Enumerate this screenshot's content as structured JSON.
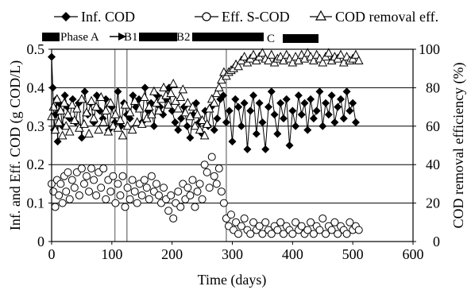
{
  "chart_data": {
    "type": "scatter",
    "xlabel": "Time (days)",
    "ylabel_left": "Inf. and Eff. COD (g COD/L)",
    "ylabel_right": "COD removal efficiency (%)",
    "xlim": [
      0,
      600
    ],
    "ylim_left": [
      0,
      0.5
    ],
    "ylim_right": [
      0,
      100
    ],
    "x_ticks": [
      0,
      100,
      200,
      300,
      400,
      500,
      600
    ],
    "y_ticks_left": [
      0,
      0.1,
      0.2,
      0.3,
      0.4,
      0.5
    ],
    "y_ticks_right": [
      0,
      20,
      40,
      60,
      80,
      100
    ],
    "grid": "horizontal",
    "legend_placement": "top",
    "legend": [
      "Inf. COD",
      "Eff. S-COD",
      "COD removal eff."
    ],
    "phase_labels": [
      "Phase A",
      "B1",
      "B2",
      "C"
    ],
    "phase_boundaries_days": [
      105,
      125,
      290
    ],
    "series": [
      {
        "name": "Inf. COD",
        "marker": "filled-diamond",
        "axis": "left",
        "line": true,
        "x": [
          0,
          2,
          4,
          6,
          8,
          10,
          12,
          15,
          18,
          22,
          26,
          30,
          35,
          40,
          45,
          50,
          55,
          60,
          65,
          70,
          75,
          80,
          85,
          90,
          95,
          100,
          105,
          110,
          115,
          120,
          125,
          130,
          135,
          140,
          145,
          150,
          155,
          160,
          165,
          170,
          175,
          180,
          185,
          190,
          195,
          200,
          205,
          210,
          215,
          220,
          225,
          230,
          235,
          240,
          245,
          250,
          255,
          260,
          265,
          270,
          275,
          280,
          285,
          290,
          295,
          300,
          305,
          310,
          315,
          320,
          325,
          330,
          335,
          340,
          345,
          350,
          355,
          360,
          365,
          370,
          375,
          380,
          385,
          390,
          395,
          400,
          405,
          410,
          415,
          420,
          425,
          430,
          435,
          440,
          445,
          450,
          455,
          460,
          465,
          470,
          475,
          480,
          485,
          490,
          495,
          500,
          505
        ],
        "y": [
          0.48,
          0.4,
          0.29,
          0.33,
          0.37,
          0.26,
          0.36,
          0.34,
          0.3,
          0.38,
          0.35,
          0.32,
          0.37,
          0.31,
          0.36,
          0.27,
          0.39,
          0.33,
          0.36,
          0.31,
          0.38,
          0.34,
          0.32,
          0.37,
          0.29,
          0.35,
          0.31,
          0.39,
          0.3,
          0.36,
          0.33,
          0.32,
          0.38,
          0.35,
          0.37,
          0.31,
          0.4,
          0.34,
          0.36,
          0.3,
          0.38,
          0.35,
          0.33,
          0.37,
          0.4,
          0.34,
          0.31,
          0.29,
          0.32,
          0.35,
          0.3,
          0.27,
          0.33,
          0.36,
          0.31,
          0.28,
          0.34,
          0.3,
          0.35,
          0.29,
          0.32,
          0.37,
          0.38,
          0.31,
          0.34,
          0.26,
          0.37,
          0.35,
          0.3,
          0.36,
          0.24,
          0.34,
          0.38,
          0.28,
          0.36,
          0.31,
          0.24,
          0.35,
          0.39,
          0.33,
          0.28,
          0.36,
          0.32,
          0.37,
          0.25,
          0.34,
          0.3,
          0.38,
          0.33,
          0.36,
          0.29,
          0.37,
          0.32,
          0.34,
          0.39,
          0.3,
          0.36,
          0.33,
          0.38,
          0.31,
          0.35,
          0.37,
          0.32,
          0.39,
          0.34,
          0.36,
          0.31
        ]
      },
      {
        "name": "Eff. S-COD",
        "marker": "open-circle",
        "axis": "left",
        "line": false,
        "x": [
          0,
          3,
          6,
          9,
          12,
          15,
          18,
          21,
          24,
          27,
          30,
          34,
          38,
          42,
          46,
          50,
          54,
          58,
          62,
          66,
          70,
          74,
          78,
          82,
          86,
          90,
          94,
          98,
          102,
          106,
          110,
          114,
          118,
          122,
          126,
          130,
          134,
          138,
          142,
          146,
          150,
          154,
          158,
          162,
          166,
          170,
          174,
          178,
          182,
          186,
          190,
          194,
          198,
          202,
          206,
          210,
          214,
          218,
          222,
          226,
          230,
          234,
          238,
          242,
          246,
          250,
          254,
          258,
          262,
          266,
          270,
          274,
          278,
          282,
          286,
          290,
          294,
          298,
          302,
          306,
          310,
          315,
          320,
          325,
          330,
          335,
          340,
          345,
          350,
          355,
          360,
          365,
          370,
          375,
          380,
          385,
          390,
          395,
          400,
          405,
          410,
          415,
          420,
          425,
          430,
          435,
          440,
          445,
          450,
          455,
          460,
          465,
          470,
          475,
          480,
          485,
          490,
          495,
          500,
          505,
          510
        ],
        "y": [
          0.15,
          0.13,
          0.09,
          0.16,
          0.12,
          0.15,
          0.1,
          0.17,
          0.13,
          0.18,
          0.11,
          0.16,
          0.14,
          0.18,
          0.12,
          0.19,
          0.15,
          0.17,
          0.13,
          0.19,
          0.16,
          0.12,
          0.18,
          0.14,
          0.19,
          0.11,
          0.16,
          0.13,
          0.17,
          0.1,
          0.15,
          0.12,
          0.17,
          0.09,
          0.14,
          0.11,
          0.16,
          0.13,
          0.1,
          0.15,
          0.12,
          0.16,
          0.14,
          0.11,
          0.17,
          0.13,
          0.15,
          0.12,
          0.1,
          0.14,
          0.11,
          0.08,
          0.12,
          0.06,
          0.1,
          0.13,
          0.09,
          0.15,
          0.11,
          0.14,
          0.12,
          0.16,
          0.09,
          0.13,
          0.15,
          0.11,
          0.2,
          0.18,
          0.14,
          0.22,
          0.17,
          0.15,
          0.19,
          0.13,
          0.1,
          0.06,
          0.04,
          0.07,
          0.03,
          0.05,
          0.02,
          0.04,
          0.06,
          0.03,
          0.02,
          0.05,
          0.03,
          0.04,
          0.02,
          0.05,
          0.03,
          0.02,
          0.04,
          0.03,
          0.05,
          0.02,
          0.04,
          0.03,
          0.02,
          0.05,
          0.03,
          0.04,
          0.02,
          0.03,
          0.05,
          0.02,
          0.04,
          0.03,
          0.06,
          0.02,
          0.04,
          0.03,
          0.05,
          0.02,
          0.04,
          0.03,
          0.02,
          0.05,
          0.03,
          0.04,
          0.03
        ]
      },
      {
        "name": "COD removal eff.",
        "marker": "open-triangle",
        "axis": "right",
        "line": false,
        "x": [
          0,
          3,
          6,
          9,
          12,
          15,
          18,
          21,
          24,
          27,
          30,
          34,
          38,
          42,
          46,
          50,
          54,
          58,
          62,
          66,
          70,
          74,
          78,
          82,
          86,
          90,
          94,
          98,
          102,
          106,
          110,
          114,
          118,
          122,
          126,
          130,
          134,
          138,
          142,
          146,
          150,
          154,
          158,
          162,
          166,
          170,
          174,
          178,
          182,
          186,
          190,
          194,
          198,
          202,
          206,
          210,
          214,
          218,
          222,
          226,
          230,
          234,
          238,
          242,
          246,
          250,
          254,
          258,
          262,
          266,
          270,
          274,
          278,
          282,
          286,
          290,
          294,
          298,
          302,
          306,
          310,
          315,
          320,
          325,
          330,
          335,
          340,
          345,
          350,
          355,
          360,
          365,
          370,
          375,
          380,
          385,
          390,
          395,
          400,
          405,
          410,
          415,
          420,
          425,
          430,
          435,
          440,
          445,
          450,
          455,
          460,
          465,
          470,
          475,
          480,
          485,
          490,
          495,
          500,
          505,
          510
        ],
        "y": [
          65,
          70,
          58,
          74,
          62,
          68,
          55,
          72,
          60,
          66,
          57,
          71,
          63,
          69,
          59,
          74,
          61,
          67,
          56,
          73,
          64,
          70,
          58,
          75,
          62,
          68,
          57,
          72,
          60,
          66,
          59,
          63,
          55,
          71,
          60,
          67,
          58,
          73,
          62,
          69,
          61,
          75,
          64,
          70,
          66,
          78,
          72,
          68,
          74,
          80,
          76,
          71,
          77,
          82,
          73,
          69,
          75,
          79,
          67,
          72,
          65,
          70,
          60,
          66,
          58,
          63,
          55,
          61,
          69,
          74,
          72,
          77,
          80,
          84,
          88,
          86,
          88,
          89,
          90,
          92,
          91,
          94,
          96,
          93,
          95,
          97,
          94,
          96,
          98,
          95,
          94,
          97,
          93,
          95,
          96,
          94,
          97,
          95,
          93,
          96,
          94,
          97,
          95,
          98,
          96,
          94,
          97,
          95,
          93,
          96,
          98,
          94,
          96,
          95,
          97,
          93,
          96,
          94,
          95,
          97,
          94
        ]
      }
    ]
  }
}
